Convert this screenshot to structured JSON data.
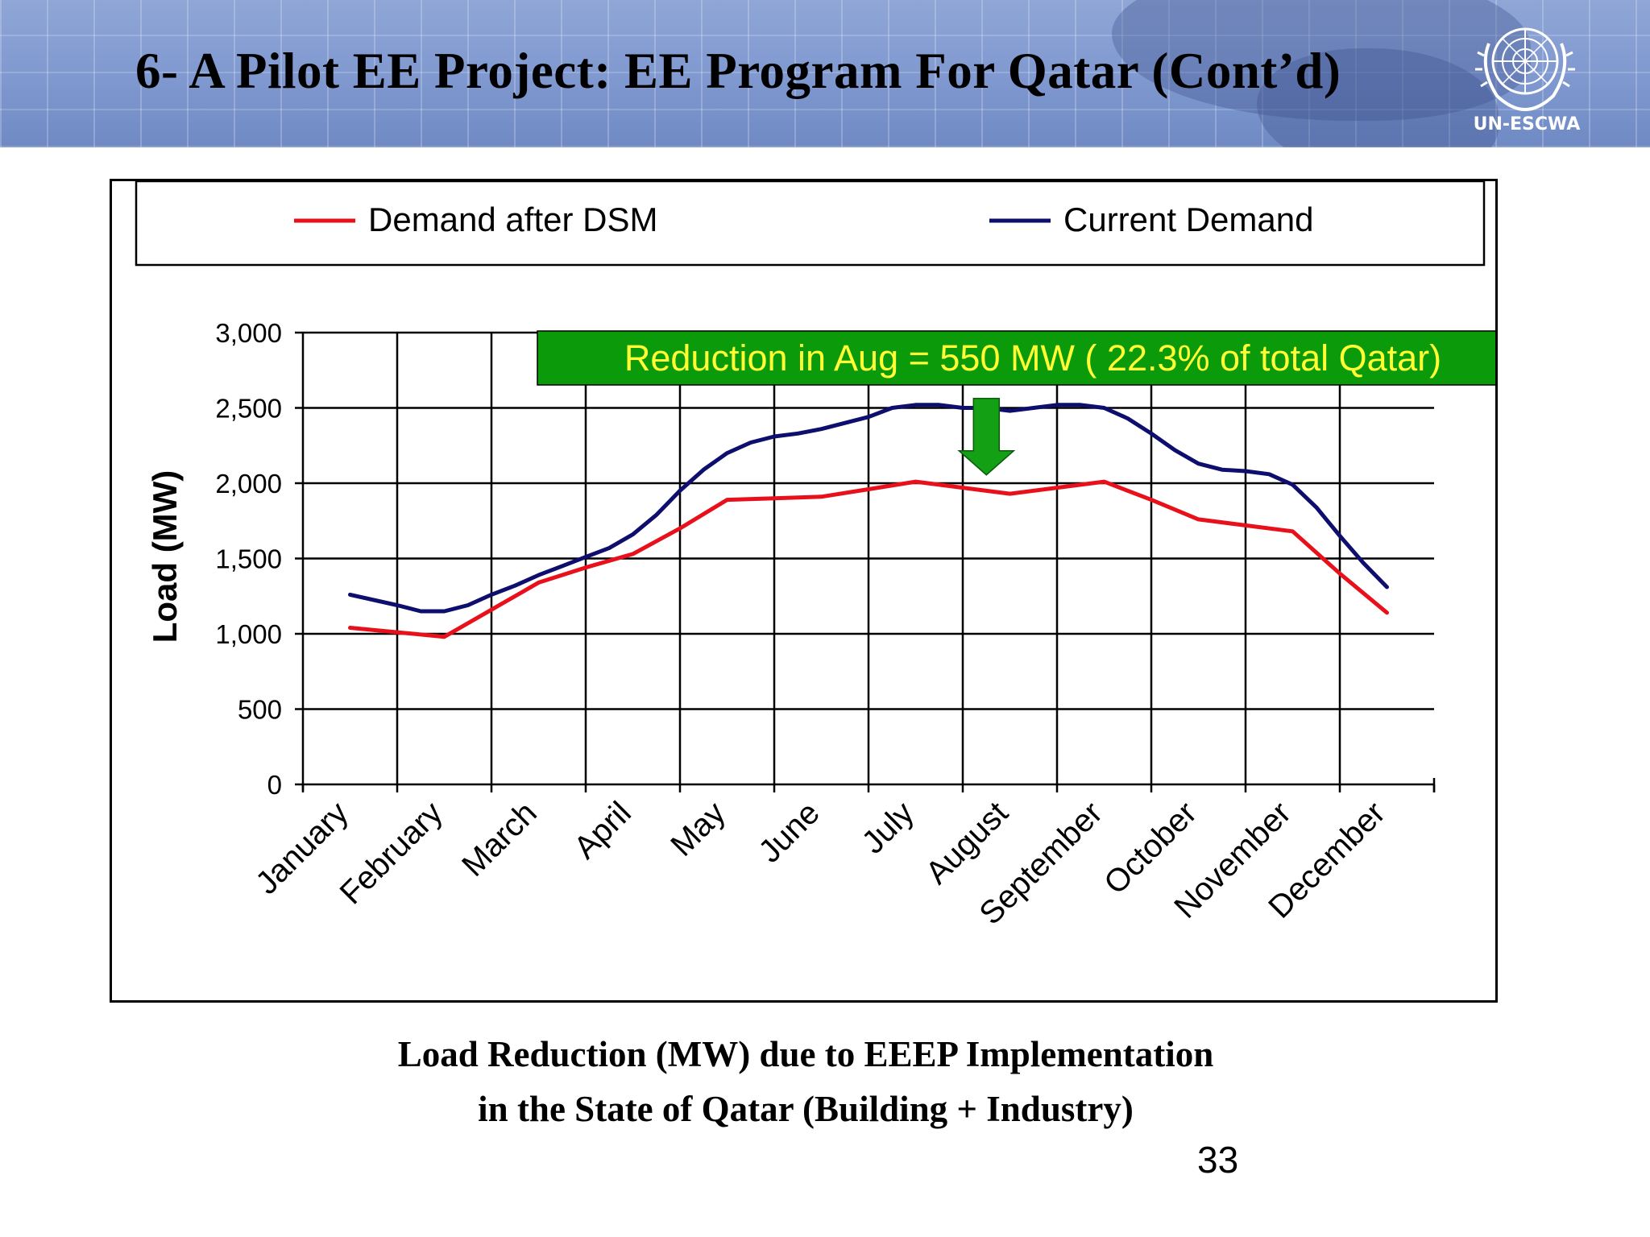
{
  "slide": {
    "title": "6-  A Pilot EE Project: EE Program For Qatar (Cont’d)",
    "org_name": "UN-ESCWA",
    "caption_line1": "Load Reduction (MW)  due to EEEP Implementation",
    "caption_line2": "in  the State of Qatar (Building + Industry)",
    "page_number": "33"
  },
  "colors": {
    "demand_after_dsm": "#e8111b",
    "current_demand": "#0e0e6e",
    "annotation_bg": "#0a9a0a",
    "annotation_text": "#ffff33",
    "arrow": "#14a014"
  },
  "chart_data": {
    "type": "line",
    "ylabel": "Load (MW)",
    "ylim": [
      0,
      3000
    ],
    "yticks": [
      0,
      500,
      1000,
      1500,
      2000,
      2500,
      3000
    ],
    "ytick_labels": [
      "0",
      "500",
      "1,000",
      "1,500",
      "2,000",
      "2,500",
      "3,000"
    ],
    "categories": [
      "January",
      "February",
      "March",
      "April",
      "May",
      "June",
      "July",
      "August",
      "September",
      "October",
      "November",
      "December"
    ],
    "grid": true,
    "legend_position": "top",
    "x": [
      0.5,
      1.0,
      1.5,
      2.0,
      2.5,
      3.0,
      3.5,
      4.0,
      4.5,
      5.0,
      5.5,
      6.0,
      6.5,
      7.0,
      7.5,
      8.0,
      8.5,
      9.0,
      9.5,
      10.0,
      10.5,
      11.0,
      11.5
    ],
    "series": [
      {
        "name": "Current Demand",
        "color_key": "current_demand",
        "x": [
          0.5,
          1.0,
          1.25,
          1.5,
          1.75,
          2.0,
          2.25,
          2.5,
          2.75,
          3.0,
          3.25,
          3.5,
          3.75,
          4.0,
          4.25,
          4.5,
          4.75,
          5.0,
          5.25,
          5.5,
          5.75,
          6.0,
          6.25,
          6.5,
          6.75,
          7.0,
          7.25,
          7.5,
          7.75,
          8.0,
          8.25,
          8.5,
          8.75,
          9.0,
          9.25,
          9.5,
          9.75,
          10.0,
          10.25,
          10.5,
          10.75,
          11.0,
          11.25,
          11.5
        ],
        "values": [
          1260,
          1190,
          1150,
          1150,
          1190,
          1260,
          1320,
          1390,
          1450,
          1510,
          1570,
          1660,
          1790,
          1950,
          2090,
          2200,
          2270,
          2310,
          2330,
          2360,
          2400,
          2440,
          2500,
          2520,
          2520,
          2500,
          2500,
          2480,
          2500,
          2520,
          2520,
          2500,
          2430,
          2330,
          2220,
          2130,
          2090,
          2080,
          2060,
          1990,
          1840,
          1650,
          1470,
          1310
        ]
      },
      {
        "name": "Demand after DSM",
        "color_key": "demand_after_dsm",
        "x": [
          0.5,
          1.0,
          1.5,
          2.0,
          2.5,
          3.0,
          3.5,
          4.0,
          4.5,
          5.0,
          5.5,
          6.0,
          6.5,
          7.0,
          7.5,
          8.0,
          8.5,
          9.0,
          9.5,
          10.0,
          10.5,
          11.0,
          11.5
        ],
        "values": [
          1040,
          1010,
          980,
          1160,
          1340,
          1440,
          1530,
          1700,
          1890,
          1900,
          1910,
          1960,
          2010,
          1970,
          1930,
          1970,
          2010,
          1890,
          1760,
          1720,
          1680,
          1400,
          1140
        ]
      }
    ],
    "annotations": [
      {
        "text": "Reduction in Aug = 550 MW ( 22.3% of total Qatar)",
        "type": "callout"
      },
      {
        "type": "down-arrow",
        "x": 7.25,
        "y_top": 2520,
        "y_bottom": 2130
      }
    ]
  }
}
